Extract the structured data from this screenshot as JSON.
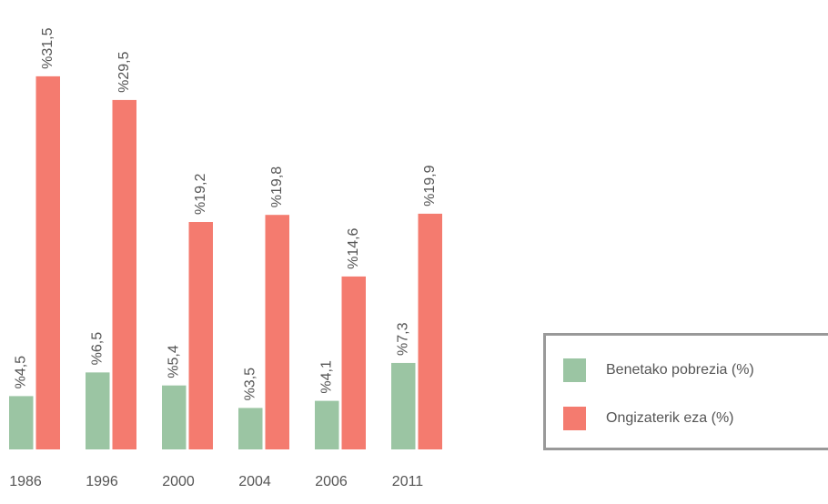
{
  "chart_data": {
    "type": "bar",
    "categories": [
      "1986",
      "1996",
      "2000",
      "2004",
      "2006",
      "2011"
    ],
    "series": [
      {
        "name": "Benetako pobrezia (%)",
        "color": "#9bc5a3",
        "values": [
          4.5,
          6.5,
          5.4,
          3.5,
          4.1,
          7.3
        ],
        "value_labels": [
          "%4,5",
          "%6,5",
          "%5,4",
          "%3,5",
          "%4,1",
          "%7,3"
        ]
      },
      {
        "name": "Ongizaterik eza (%)",
        "color": "#f47b6f",
        "values": [
          31.5,
          29.5,
          19.2,
          19.8,
          14.6,
          19.9
        ],
        "value_labels": [
          "%31,5",
          "%29,5",
          "%19,2",
          "%19,8",
          "%14,6",
          "%19,9"
        ]
      }
    ],
    "ylim": [
      0,
      35
    ],
    "legend": "right"
  }
}
